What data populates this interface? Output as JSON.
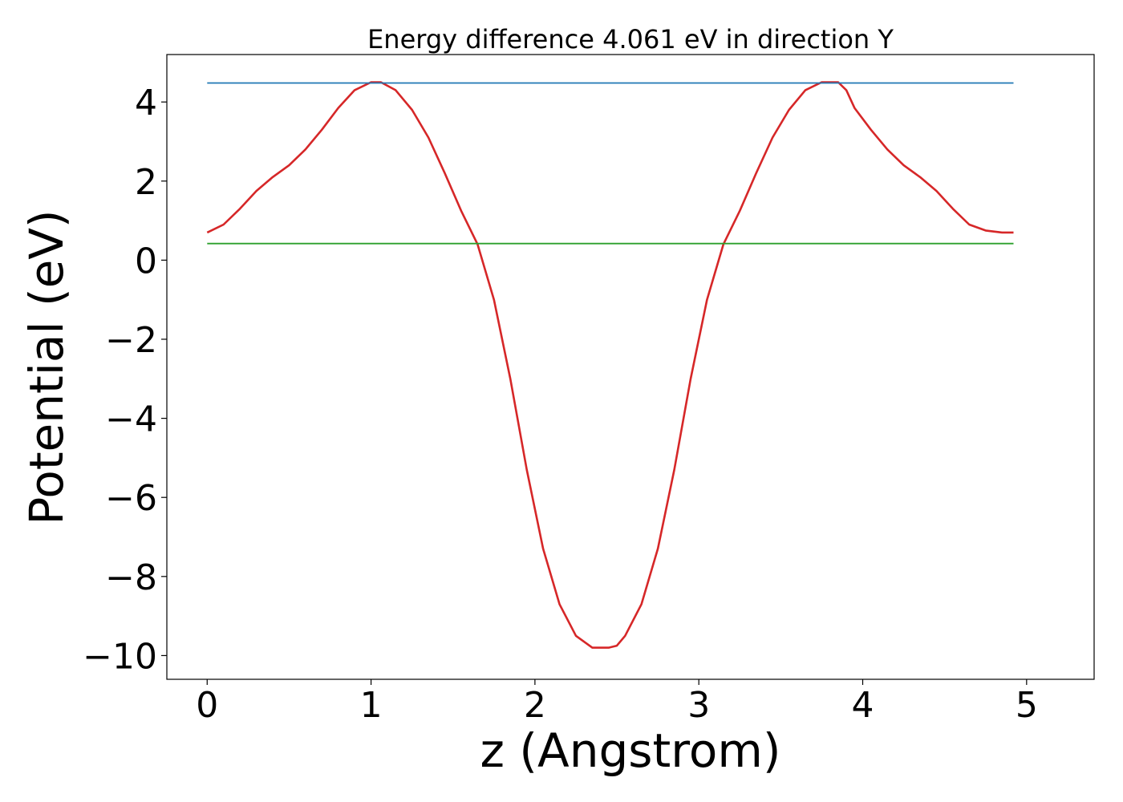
{
  "chart_data": {
    "type": "line",
    "title": "Energy difference 4.061 eV in direction Y",
    "xlabel": "z (Angstrom)",
    "ylabel": "Potential (eV)",
    "xlim": [
      -0.246,
      5.412
    ],
    "ylim": [
      -10.6,
      5.2
    ],
    "xticks": [
      0,
      1,
      2,
      3,
      4,
      5
    ],
    "yticks": [
      4,
      2,
      0,
      -2,
      -4,
      -6,
      -8,
      -10
    ],
    "xtick_labels": [
      "0",
      "1",
      "2",
      "3",
      "4",
      "5"
    ],
    "ytick_labels": [
      "4",
      "2",
      "0",
      "−2",
      "−4",
      "−6",
      "−8",
      "−10"
    ],
    "grid": false,
    "legend": "none",
    "series": [
      {
        "color": "#d62728",
        "x": [
          0,
          0.1,
          0.2,
          0.3,
          0.4,
          0.5,
          0.6,
          0.7,
          0.8,
          0.9,
          1.0,
          1.06,
          1.15,
          1.25,
          1.35,
          1.45,
          1.55,
          1.65,
          1.75,
          1.85,
          1.95,
          2.05,
          2.15,
          2.25,
          2.35,
          2.45,
          2.5,
          2.55,
          2.65,
          2.75,
          2.85,
          2.95,
          3.05,
          3.15,
          3.25,
          3.35,
          3.45,
          3.55,
          3.65,
          3.75,
          3.85,
          3.9,
          3.95,
          4.05,
          4.15,
          4.25,
          4.35,
          4.45,
          4.55,
          4.65,
          4.75,
          4.85,
          4.92
        ],
        "y": [
          0.7,
          0.9,
          1.3,
          1.75,
          2.1,
          2.4,
          2.8,
          3.3,
          3.85,
          4.3,
          4.5,
          4.5,
          4.3,
          3.8,
          3.1,
          2.2,
          1.25,
          0.4,
          -1.0,
          -3.0,
          -5.3,
          -7.3,
          -8.7,
          -9.5,
          -9.8,
          -9.8,
          -9.75,
          -9.5,
          -8.7,
          -7.3,
          -5.3,
          -3.0,
          -1.0,
          0.4,
          1.25,
          2.2,
          3.1,
          3.8,
          4.3,
          4.5,
          4.5,
          4.3,
          3.85,
          3.3,
          2.8,
          2.4,
          2.1,
          1.75,
          1.3,
          0.9,
          0.75,
          0.7,
          0.7
        ]
      },
      {
        "color": "#1f77b4",
        "x": [
          0,
          4.92
        ],
        "y": [
          4.48,
          4.48
        ]
      },
      {
        "color": "#2ca02c",
        "x": [
          0,
          4.92
        ],
        "y": [
          0.42,
          0.42
        ]
      }
    ]
  }
}
